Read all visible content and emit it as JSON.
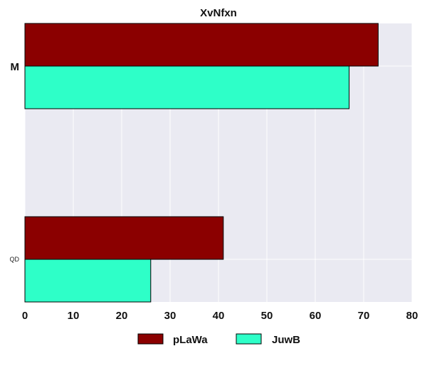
{
  "chart_data": {
    "type": "bar",
    "orientation": "horizontal",
    "title": "XvNfxn",
    "xlabel": "",
    "ylabel": "",
    "categories": [
      "M",
      "QD"
    ],
    "series": [
      {
        "name": "pLaWa",
        "values": [
          73,
          41
        ],
        "color": "#8b0000"
      },
      {
        "name": "JuwB",
        "values": [
          67,
          26
        ],
        "color": "#2effc8"
      }
    ],
    "xlim": [
      0,
      80
    ],
    "xticks": [
      "0",
      "10",
      "20",
      "30",
      "40",
      "50",
      "60",
      "70",
      "80"
    ],
    "grid": true,
    "legend": "bottom-center",
    "colors": {
      "background": "#eaeaf2",
      "grid": "#ffffff"
    }
  }
}
